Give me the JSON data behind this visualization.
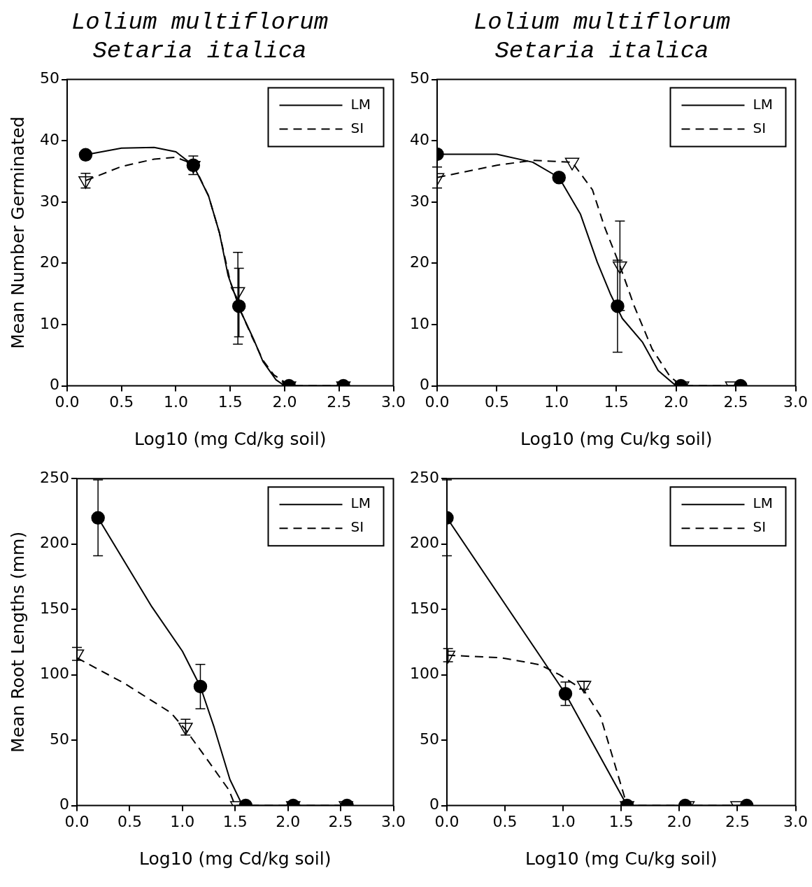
{
  "chart_data": [
    {
      "type": "line",
      "title": "Lolium multiflorum\nSetaria italica",
      "xlabel": "Log10 (mg Cd/kg soil)",
      "ylabel": "Mean Number Germinated",
      "xlim": [
        0,
        3
      ],
      "xticks": [
        {
          "value": 0,
          "label": "0.0"
        },
        {
          "value": 0.5,
          "label": "0.5"
        },
        {
          "value": 1,
          "label": "1.0"
        },
        {
          "value": 1.5,
          "label": "1.5"
        },
        {
          "value": 2,
          "label": "2.0"
        },
        {
          "value": 2.5,
          "label": "2.5"
        },
        {
          "value": 3,
          "label": "3.0"
        }
      ],
      "ylim": [
        0,
        50
      ],
      "yticks": [
        0,
        10,
        20,
        30,
        40,
        50
      ],
      "legend": "top right",
      "series": [
        {
          "type": "scatter",
          "marker": "circle",
          "color": "#000000",
          "x": [
            0.17,
            1.16,
            1.58,
            2.04,
            2.54
          ],
          "values": [
            37.7,
            36,
            13,
            0,
            0
          ],
          "errors": [
            null,
            1.5,
            [
              8,
              19.2
            ],
            null,
            null
          ]
        },
        {
          "type": "scatter",
          "marker": "triangle",
          "color": "#000000",
          "x": [
            0.17,
            1.16,
            1.57,
            2.04,
            2.54
          ],
          "values": [
            33.5,
            36,
            15.4,
            0,
            0
          ],
          "errors": [
            1.2,
            null,
            [
              6.8,
              21.8
            ],
            null,
            null
          ]
        },
        {
          "type": "line",
          "name": "LM",
          "line_style": "solid",
          "color": "#000000",
          "x": [
            0.17,
            0.5,
            0.8,
            1.0,
            1.16,
            1.3,
            1.4,
            1.48,
            1.6,
            1.72,
            1.8,
            1.92,
            2.0,
            2.54
          ],
          "values": [
            37.7,
            38.8,
            38.9,
            38.2,
            36,
            31,
            25,
            18,
            12,
            7.4,
            4,
            1,
            0,
            0
          ]
        },
        {
          "type": "line",
          "name": "SI",
          "line_style": "dashed",
          "color": "#000000",
          "x": [
            0.17,
            0.5,
            0.8,
            1.0,
            1.16,
            1.3,
            1.4,
            1.5,
            1.6,
            1.7,
            1.8,
            1.9,
            2.05,
            2.54
          ],
          "values": [
            33.5,
            35.8,
            37,
            37.3,
            36.2,
            31,
            25,
            17,
            12,
            8,
            4.2,
            1.8,
            0,
            0
          ]
        }
      ]
    },
    {
      "type": "line",
      "title": "Lolium multiflorum\nSetaria italica",
      "xlabel": "Log10 (mg Cu/kg soil)",
      "xlim": [
        0,
        3
      ],
      "xticks": [
        {
          "value": 0,
          "label": "0.0"
        },
        {
          "value": 0.5,
          "label": "0.5"
        },
        {
          "value": 1,
          "label": "1.0"
        },
        {
          "value": 1.5,
          "label": "1.5"
        },
        {
          "value": 2,
          "label": "2.0"
        },
        {
          "value": 2.5,
          "label": "2.5"
        },
        {
          "value": 3,
          "label": "3.0"
        }
      ],
      "ylim": [
        0,
        50
      ],
      "yticks": [
        0,
        10,
        20,
        30,
        40,
        50
      ],
      "legend": "top right",
      "series": [
        {
          "type": "scatter",
          "marker": "circle",
          "color": "#000000",
          "x": [
            0,
            1.02,
            1.51,
            2.04,
            2.54
          ],
          "values": [
            37.8,
            34,
            13,
            0,
            0
          ],
          "errors": [
            null,
            null,
            7.5,
            null,
            null
          ]
        },
        {
          "type": "scatter",
          "marker": "triangle",
          "color": "#000000",
          "x": [
            0,
            1.13,
            1.53,
            2.05,
            2.47
          ],
          "values": [
            34,
            36.5,
            19.6,
            0,
            0
          ],
          "errors": [
            1.7,
            null,
            7.3,
            null,
            null
          ]
        },
        {
          "type": "line",
          "name": "LM",
          "line_style": "solid",
          "color": "#000000",
          "x": [
            0,
            0.5,
            0.8,
            1.02,
            1.2,
            1.34,
            1.45,
            1.55,
            1.72,
            1.85,
            2.0,
            2.55
          ],
          "values": [
            37.8,
            37.8,
            36.5,
            34,
            28,
            20.2,
            15,
            11,
            7.1,
            2.5,
            0,
            0
          ]
        },
        {
          "type": "line",
          "name": "SI",
          "line_style": "dashed",
          "color": "#000000",
          "x": [
            0,
            0.5,
            0.8,
            1.13,
            1.3,
            1.4,
            1.53,
            1.65,
            1.8,
            1.95,
            2.05,
            2.5
          ],
          "values": [
            34,
            36,
            36.8,
            36.5,
            32,
            26,
            19.6,
            13,
            6,
            1.5,
            0,
            0
          ]
        }
      ]
    },
    {
      "type": "line",
      "xlabel": "Log10 (mg Cd/kg soil)",
      "ylabel": "Mean Root Lengths (mm)",
      "xlim": [
        0,
        3
      ],
      "xticks": [
        {
          "value": 0,
          "label": "0.0"
        },
        {
          "value": 0.5,
          "label": "0.5"
        },
        {
          "value": 1,
          "label": "1.0"
        },
        {
          "value": 1.5,
          "label": "1.5"
        },
        {
          "value": 2,
          "label": "2.0"
        },
        {
          "value": 2.5,
          "label": "2.5"
        },
        {
          "value": 3,
          "label": "3.0"
        }
      ],
      "ylim": [
        0,
        250
      ],
      "yticks": [
        0,
        50,
        100,
        150,
        200,
        250
      ],
      "legend": "top right",
      "series": [
        {
          "type": "scatter",
          "marker": "circle",
          "color": "#000000",
          "x": [
            0.2,
            1.17,
            1.6,
            2.05,
            2.56
          ],
          "values": [
            220,
            91,
            0,
            0,
            0
          ],
          "errors": [
            29,
            17,
            null,
            null,
            null
          ]
        },
        {
          "type": "scatter",
          "marker": "triangle",
          "color": "#000000",
          "x": [
            0,
            1.03,
            1.52,
            2.05,
            2.55
          ],
          "values": [
            116,
            60,
            0,
            0,
            0
          ],
          "errors": [
            5,
            6,
            null,
            null,
            null
          ]
        },
        {
          "type": "line",
          "name": "LM",
          "line_style": "solid",
          "color": "#000000",
          "x": [
            0.2,
            0.71,
            1.0,
            1.17,
            1.3,
            1.45,
            1.57,
            2.05,
            2.56
          ],
          "values": [
            220,
            152,
            118,
            91,
            60,
            20,
            0,
            0,
            0
          ]
        },
        {
          "type": "line",
          "name": "SI",
          "line_style": "dashed",
          "color": "#000000",
          "x": [
            0,
            0.46,
            0.89,
            1.03,
            1.21,
            1.44,
            1.5,
            2.55
          ],
          "values": [
            113,
            93,
            71,
            58,
            38,
            12,
            0,
            0
          ]
        }
      ]
    },
    {
      "type": "line",
      "xlabel": "Log10 (mg Cu/kg soil)",
      "xlim": [
        0,
        3
      ],
      "xticks": [
        {
          "value": 0,
          "label": "0.0"
        },
        {
          "value": 0.5,
          "label": "0.5"
        },
        {
          "value": 1,
          "label": "1.0"
        },
        {
          "value": 1.5,
          "label": "1.5"
        },
        {
          "value": 2,
          "label": "2.0"
        },
        {
          "value": 2.5,
          "label": "2.5"
        },
        {
          "value": 3,
          "label": "3.0"
        }
      ],
      "ylim": [
        0,
        250
      ],
      "yticks": [
        0,
        50,
        100,
        150,
        200,
        250
      ],
      "legend": "top right",
      "series": [
        {
          "type": "scatter",
          "marker": "circle",
          "color": "#000000",
          "x": [
            0,
            1.02,
            1.55,
            2.05,
            2.58
          ],
          "values": [
            220,
            85.5,
            0,
            0,
            0
          ],
          "errors": [
            29,
            9,
            null,
            null,
            null
          ]
        },
        {
          "type": "scatter",
          "marker": "triangle",
          "color": "#000000",
          "x": [
            0.01,
            1.18,
            1.55,
            2.07,
            2.5
          ],
          "values": [
            115,
            92,
            0,
            0,
            0
          ],
          "errors": [
            5,
            3,
            null,
            null,
            null
          ]
        },
        {
          "type": "line",
          "name": "LM",
          "line_style": "solid",
          "color": "#000000",
          "x": [
            0,
            1.02,
            1.55,
            2.05,
            2.58
          ],
          "values": [
            220,
            85.5,
            0,
            0,
            0
          ]
        },
        {
          "type": "line",
          "name": "SI",
          "line_style": "dashed",
          "color": "#000000",
          "x": [
            0,
            0.47,
            0.8,
            0.97,
            1.18,
            1.32,
            1.47,
            1.55,
            2.58
          ],
          "values": [
            115,
            113,
            107.7,
            100,
            88,
            68.7,
            24,
            0,
            0
          ]
        }
      ]
    }
  ]
}
